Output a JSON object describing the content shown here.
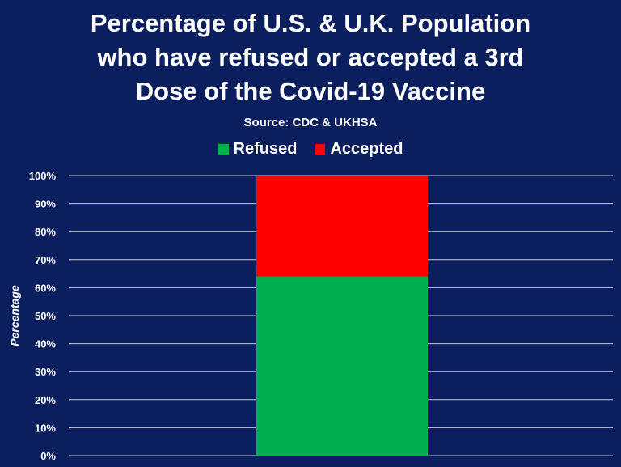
{
  "title_lines": [
    "Percentage of U.S. & U.K. Population",
    "who have refused or accepted a 3rd",
    "Dose of the Covid-19 Vaccine"
  ],
  "subtitle": "Source: CDC & UKHSA",
  "colors": {
    "background": "#0b1f5e",
    "refused": "#00b050",
    "accepted": "#ff0000",
    "gridline": "#c9cde0"
  },
  "chart_data": {
    "type": "bar",
    "stacked": true,
    "categories": [
      ""
    ],
    "series": [
      {
        "name": "Refused",
        "values": [
          64
        ]
      },
      {
        "name": "Accepted",
        "values": [
          36
        ]
      }
    ],
    "ylabel": "Percentage",
    "ylim": [
      0,
      100
    ],
    "yticks": [
      "0%",
      "10%",
      "20%",
      "30%",
      "40%",
      "50%",
      "60%",
      "70%",
      "80%",
      "90%",
      "100%"
    ],
    "grid": true,
    "legend_position": "top"
  }
}
